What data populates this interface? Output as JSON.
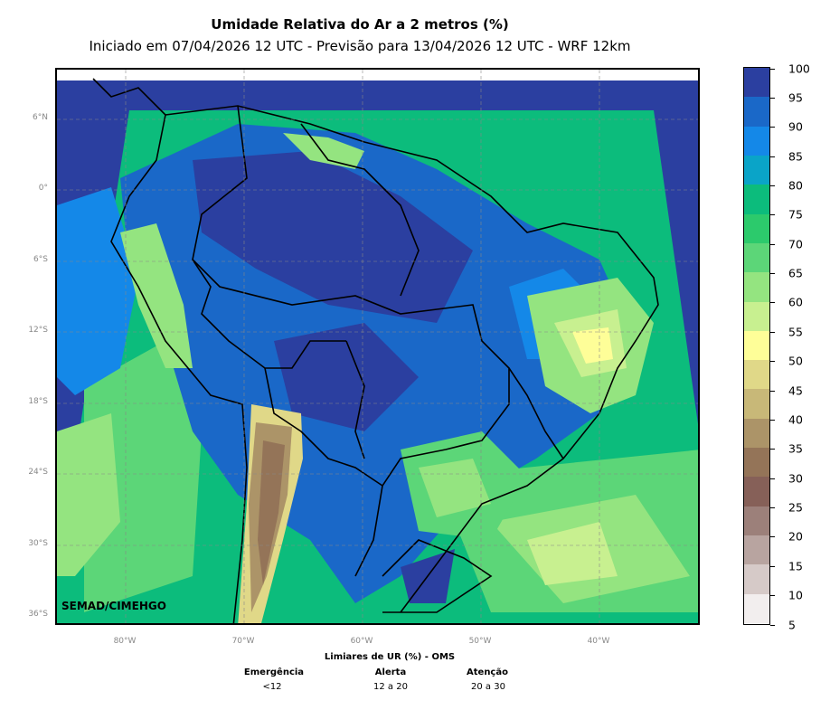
{
  "title": "Umidade Relativa do Ar a 2 metros (%)",
  "subtitle": "Iniciado em 07/04/2026 12 UTC - Previsão para 13/04/2026 12 UTC - WRF 12km",
  "credit": "SEMAD/CIMEHGO",
  "lat_labels": [
    "6°N",
    "0°",
    "6°S",
    "12°S",
    "18°S",
    "24°S",
    "30°S",
    "36°S"
  ],
  "lon_labels": [
    "80°W",
    "70°W",
    "60°W",
    "50°W",
    "40°W"
  ],
  "colorbar": {
    "levels": [
      "100",
      "95",
      "90",
      "85",
      "80",
      "75",
      "70",
      "65",
      "60",
      "55",
      "50",
      "45",
      "40",
      "35",
      "30",
      "25",
      "20",
      "15",
      "10",
      "5"
    ],
    "colors": [
      "#2b3fa0",
      "#1a68c8",
      "#1488e8",
      "#0aa4c8",
      "#0cbc7c",
      "#2cca6c",
      "#5cd678",
      "#94e480",
      "#c8f090",
      "#fefe98",
      "#e0d888",
      "#c8b878",
      "#ac9468",
      "#947458",
      "#866058",
      "#9c807a",
      "#b8a4a0",
      "#d6cac8",
      "#f2eeee"
    ]
  },
  "who": {
    "header": "Limiares de UR (%) - OMS",
    "columns": [
      {
        "name": "Emergência",
        "value": "<12"
      },
      {
        "name": "Alerta",
        "value": "12 a 20"
      },
      {
        "name": "Atenção",
        "value": "20 a 30"
      }
    ]
  }
}
